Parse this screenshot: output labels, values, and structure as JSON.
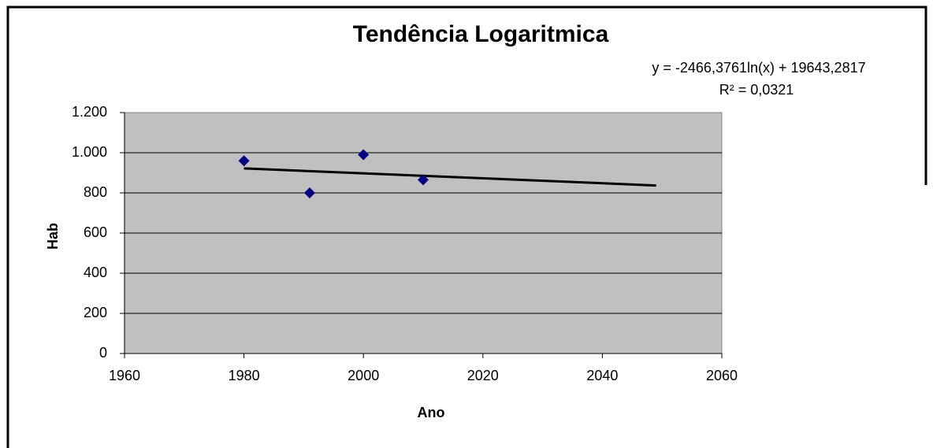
{
  "chart_data": {
    "type": "scatter",
    "title": "Tendência Logaritmica",
    "annotations": [
      "y = -2466,3761ln(x)  + 19643,2817",
      "R² = 0,0321"
    ],
    "x_label": "Ano",
    "y_label": "Hab",
    "x": [
      1980,
      1991,
      2000,
      2010
    ],
    "values": [
      960,
      800,
      990,
      865
    ],
    "color": "#000080",
    "trendline": {
      "x": [
        1980,
        2049
      ],
      "values": [
        922,
        837
      ],
      "color": "#000000"
    },
    "xlim": [
      1960,
      2060
    ],
    "xticks": [
      1960,
      1980,
      2000,
      2020,
      2040,
      2060
    ],
    "ylim": [
      0,
      1200
    ],
    "yticks": [
      0,
      200,
      400,
      600,
      800,
      {
        "value": 1000,
        "label": "1.000"
      },
      {
        "value": 1200,
        "label": "1.200"
      }
    ],
    "grid": true
  }
}
